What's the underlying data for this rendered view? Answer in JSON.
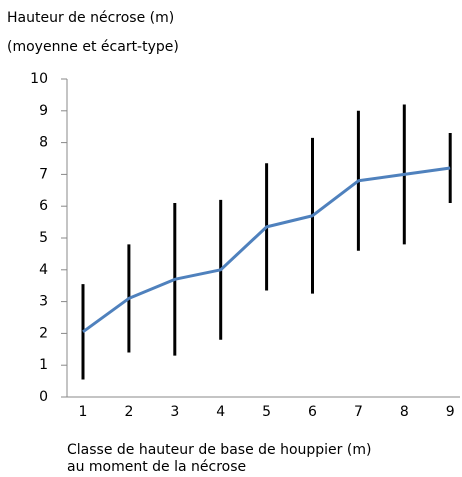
{
  "chart_data": {
    "type": "line",
    "title": "Hauteur de nécrose (m)",
    "subtitle": "(moyenne et écart-type)",
    "x_label": [
      "Classe de hauteur de base de houppier (m)",
      "au moment de la nécrose"
    ],
    "categories": [
      "1",
      "2",
      "3",
      "4",
      "5",
      "6",
      "7",
      "8",
      "9"
    ],
    "series": [
      {
        "color": "#4f81bd",
        "values": [
          2.05,
          3.1,
          3.7,
          4.0,
          5.35,
          5.7,
          6.8,
          7.0,
          7.2
        ],
        "errors": [
          1.5,
          1.7,
          2.4,
          2.2,
          2.0,
          2.45,
          2.2,
          2.2,
          1.1
        ],
        "error_color": "#000000"
      }
    ],
    "ylim": [
      0,
      10
    ],
    "yticks": [
      0,
      1,
      2,
      3,
      4,
      5,
      6,
      7,
      8,
      9,
      10
    ],
    "grid": false
  }
}
